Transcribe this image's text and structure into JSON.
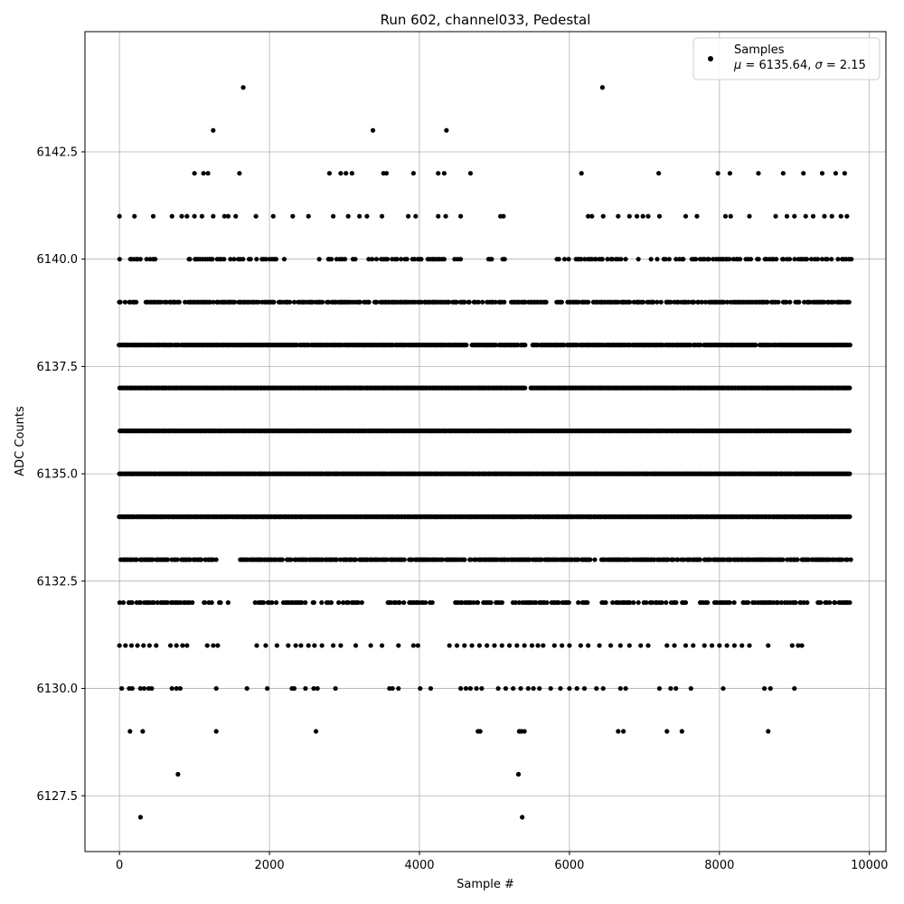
{
  "chart_data": {
    "type": "scatter",
    "title": "Run 602, channel033, Pedestal",
    "xlabel": "Sample #",
    "ylabel": "ADC Counts",
    "xlim": [
      -460,
      10220
    ],
    "ylim": [
      6126.2,
      6145.3
    ],
    "xticks": [
      0,
      2000,
      4000,
      6000,
      8000,
      10000
    ],
    "xtick_labels": [
      "0",
      "2000",
      "4000",
      "6000",
      "8000",
      "10000"
    ],
    "yticks": [
      6127.5,
      6130.0,
      6132.5,
      6135.0,
      6137.5,
      6140.0,
      6142.5
    ],
    "ytick_labels": [
      "6127.5",
      "6130.0",
      "6132.5",
      "6135.0",
      "6137.5",
      "6140.0",
      "6142.5"
    ],
    "grid": true,
    "legend_position": "top-right",
    "marker_color": "#000000",
    "legend": {
      "label": "Samples",
      "stats_mu": "6135.64",
      "stats_sigma": "2.15"
    },
    "series": [
      {
        "name": "Samples",
        "points": [
          [
            280,
            6127
          ],
          [
            5370,
            6127
          ],
          [
            780,
            6128
          ],
          [
            5320,
            6128
          ],
          [
            140,
            6129
          ],
          [
            310,
            6129
          ],
          [
            1290,
            6129
          ],
          [
            2620,
            6129
          ],
          [
            4780,
            6129
          ],
          [
            4810,
            6129
          ],
          [
            5330,
            6129
          ],
          [
            5360,
            6129
          ],
          [
            5400,
            6129
          ],
          [
            6650,
            6129
          ],
          [
            6720,
            6129
          ],
          [
            7300,
            6129
          ],
          [
            7500,
            6129
          ],
          [
            8650,
            6129
          ],
          [
            30,
            6130
          ],
          [
            130,
            6130
          ],
          [
            170,
            6130
          ],
          [
            280,
            6130
          ],
          [
            330,
            6130
          ],
          [
            390,
            6130
          ],
          [
            430,
            6130
          ],
          [
            700,
            6130
          ],
          [
            760,
            6130
          ],
          [
            810,
            6130
          ],
          [
            1290,
            6130
          ],
          [
            1700,
            6130
          ],
          [
            1970,
            6130
          ],
          [
            2300,
            6130
          ],
          [
            2330,
            6130
          ],
          [
            2480,
            6130
          ],
          [
            2590,
            6130
          ],
          [
            2640,
            6130
          ],
          [
            2880,
            6130
          ],
          [
            3600,
            6130
          ],
          [
            3640,
            6130
          ],
          [
            3720,
            6130
          ],
          [
            4010,
            6130
          ],
          [
            4150,
            6130
          ],
          [
            4550,
            6130
          ],
          [
            4620,
            6130
          ],
          [
            4680,
            6130
          ],
          [
            4760,
            6130
          ],
          [
            4830,
            6130
          ],
          [
            5050,
            6130
          ],
          [
            5150,
            6130
          ],
          [
            5250,
            6130
          ],
          [
            5350,
            6130
          ],
          [
            5450,
            6130
          ],
          [
            5520,
            6130
          ],
          [
            5600,
            6130
          ],
          [
            5750,
            6130
          ],
          [
            5880,
            6130
          ],
          [
            6000,
            6130
          ],
          [
            6100,
            6130
          ],
          [
            6200,
            6130
          ],
          [
            6360,
            6130
          ],
          [
            6450,
            6130
          ],
          [
            6680,
            6130
          ],
          [
            6750,
            6130
          ],
          [
            7200,
            6130
          ],
          [
            7350,
            6130
          ],
          [
            7420,
            6130
          ],
          [
            7620,
            6130
          ],
          [
            8050,
            6130
          ],
          [
            8600,
            6130
          ],
          [
            8680,
            6130
          ],
          [
            9000,
            6130
          ],
          [
            0,
            6131
          ],
          [
            80,
            6131
          ],
          [
            160,
            6131
          ],
          [
            240,
            6131
          ],
          [
            320,
            6131
          ],
          [
            400,
            6131
          ],
          [
            490,
            6131
          ],
          [
            680,
            6131
          ],
          [
            760,
            6131
          ],
          [
            840,
            6131
          ],
          [
            900,
            6131
          ],
          [
            1170,
            6131
          ],
          [
            1250,
            6131
          ],
          [
            1310,
            6131
          ],
          [
            1830,
            6131
          ],
          [
            1950,
            6131
          ],
          [
            2100,
            6131
          ],
          [
            2250,
            6131
          ],
          [
            2350,
            6131
          ],
          [
            2420,
            6131
          ],
          [
            2520,
            6131
          ],
          [
            2600,
            6131
          ],
          [
            2700,
            6131
          ],
          [
            2850,
            6131
          ],
          [
            2950,
            6131
          ],
          [
            3150,
            6131
          ],
          [
            3350,
            6131
          ],
          [
            3500,
            6131
          ],
          [
            3720,
            6131
          ],
          [
            3920,
            6131
          ],
          [
            3980,
            6131
          ],
          [
            4400,
            6131
          ],
          [
            4500,
            6131
          ],
          [
            4600,
            6131
          ],
          [
            4700,
            6131
          ],
          [
            4800,
            6131
          ],
          [
            4900,
            6131
          ],
          [
            5000,
            6131
          ],
          [
            5100,
            6131
          ],
          [
            5200,
            6131
          ],
          [
            5300,
            6131
          ],
          [
            5400,
            6131
          ],
          [
            5500,
            6131
          ],
          [
            5580,
            6131
          ],
          [
            5650,
            6131
          ],
          [
            5800,
            6131
          ],
          [
            5900,
            6131
          ],
          [
            6000,
            6131
          ],
          [
            6150,
            6131
          ],
          [
            6250,
            6131
          ],
          [
            6400,
            6131
          ],
          [
            6550,
            6131
          ],
          [
            6680,
            6131
          ],
          [
            6800,
            6131
          ],
          [
            6950,
            6131
          ],
          [
            7050,
            6131
          ],
          [
            7300,
            6131
          ],
          [
            7400,
            6131
          ],
          [
            7550,
            6131
          ],
          [
            7650,
            6131
          ],
          [
            7800,
            6131
          ],
          [
            7900,
            6131
          ],
          [
            8000,
            6131
          ],
          [
            8100,
            6131
          ],
          [
            8200,
            6131
          ],
          [
            8300,
            6131
          ],
          [
            8400,
            6131
          ],
          [
            8650,
            6131
          ],
          [
            8970,
            6131
          ],
          [
            9050,
            6131
          ],
          [
            9100,
            6131
          ],
          [
            0,
            6141
          ],
          [
            200,
            6141
          ],
          [
            450,
            6141
          ],
          [
            700,
            6141
          ],
          [
            830,
            6141
          ],
          [
            900,
            6141
          ],
          [
            1000,
            6141
          ],
          [
            1100,
            6141
          ],
          [
            1250,
            6141
          ],
          [
            1400,
            6141
          ],
          [
            1450,
            6141
          ],
          [
            1550,
            6141
          ],
          [
            1820,
            6141
          ],
          [
            2050,
            6141
          ],
          [
            2310,
            6141
          ],
          [
            2520,
            6141
          ],
          [
            2850,
            6141
          ],
          [
            3050,
            6141
          ],
          [
            3200,
            6141
          ],
          [
            3300,
            6141
          ],
          [
            3500,
            6141
          ],
          [
            3850,
            6141
          ],
          [
            3950,
            6141
          ],
          [
            4250,
            6141
          ],
          [
            4350,
            6141
          ],
          [
            4550,
            6141
          ],
          [
            5080,
            6141
          ],
          [
            5120,
            6141
          ],
          [
            6250,
            6141
          ],
          [
            6300,
            6141
          ],
          [
            6450,
            6141
          ],
          [
            6650,
            6141
          ],
          [
            6800,
            6141
          ],
          [
            6900,
            6141
          ],
          [
            6980,
            6141
          ],
          [
            7050,
            6141
          ],
          [
            7200,
            6141
          ],
          [
            7550,
            6141
          ],
          [
            7700,
            6141
          ],
          [
            8080,
            6141
          ],
          [
            8150,
            6141
          ],
          [
            8400,
            6141
          ],
          [
            8750,
            6141
          ],
          [
            8900,
            6141
          ],
          [
            9000,
            6141
          ],
          [
            9150,
            6141
          ],
          [
            9250,
            6141
          ],
          [
            9400,
            6141
          ],
          [
            9500,
            6141
          ],
          [
            9620,
            6141
          ],
          [
            9700,
            6141
          ],
          [
            1000,
            6142
          ],
          [
            1120,
            6142
          ],
          [
            1180,
            6142
          ],
          [
            1600,
            6142
          ],
          [
            2800,
            6142
          ],
          [
            2950,
            6142
          ],
          [
            3020,
            6142
          ],
          [
            3100,
            6142
          ],
          [
            3520,
            6142
          ],
          [
            3560,
            6142
          ],
          [
            3920,
            6142
          ],
          [
            4250,
            6142
          ],
          [
            4330,
            6142
          ],
          [
            4680,
            6142
          ],
          [
            6160,
            6142
          ],
          [
            7190,
            6142
          ],
          [
            7980,
            6142
          ],
          [
            8140,
            6142
          ],
          [
            8520,
            6142
          ],
          [
            8850,
            6142
          ],
          [
            9120,
            6142
          ],
          [
            9370,
            6142
          ],
          [
            9550,
            6142
          ],
          [
            9670,
            6142
          ],
          [
            1250,
            6143
          ],
          [
            3380,
            6143
          ],
          [
            4360,
            6143
          ],
          [
            1650,
            6144
          ],
          [
            6440,
            6144
          ]
        ]
      }
    ],
    "band_rows": [
      {
        "y": 6132,
        "gaps": [
          [
            1000,
            1100
          ],
          [
            1450,
            1800
          ],
          [
            2500,
            2580
          ],
          [
            3280,
            3580
          ],
          [
            4200,
            4420
          ],
          [
            5150,
            5200
          ],
          [
            6250,
            6400
          ],
          [
            7550,
            7700
          ],
          [
            9200,
            9300
          ]
        ],
        "density": 70
      },
      {
        "y": 6133,
        "gaps": [
          [
            1300,
            1580
          ],
          [
            3800,
            3850
          ],
          [
            6350,
            6420
          ]
        ],
        "density": 85
      },
      {
        "y": 6134,
        "gaps": [],
        "density": 100
      },
      {
        "y": 6135,
        "gaps": [],
        "density": 100
      },
      {
        "y": 6136,
        "gaps": [],
        "density": 100
      },
      {
        "y": 6137,
        "gaps": [
          [
            5420,
            5480
          ]
        ],
        "density": 100
      },
      {
        "y": 6138,
        "gaps": [
          [
            4650,
            4700
          ],
          [
            5420,
            5480
          ]
        ],
        "density": 95
      },
      {
        "y": 6139,
        "gaps": [
          [
            230,
            330
          ],
          [
            5180,
            5220
          ],
          [
            5700,
            5830
          ]
        ],
        "density": 80
      },
      {
        "y": 6140,
        "gaps": [
          [
            500,
            900
          ],
          [
            2200,
            2650
          ],
          [
            4550,
            4880
          ],
          [
            4980,
            5080
          ],
          [
            5150,
            5800
          ],
          [
            6800,
            6900
          ],
          [
            7550,
            7620
          ]
        ],
        "density": 60
      }
    ],
    "x_span": [
      0,
      9750
    ]
  }
}
